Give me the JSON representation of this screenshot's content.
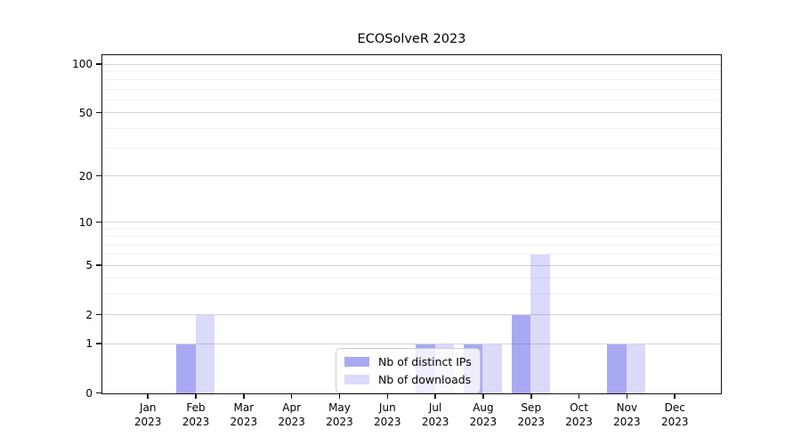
{
  "chart_data": {
    "type": "bar",
    "title": "ECOSolveR 2023",
    "year": "2023",
    "categories": [
      "Jan",
      "Feb",
      "Mar",
      "Apr",
      "May",
      "Jun",
      "Jul",
      "Aug",
      "Sep",
      "Oct",
      "Nov",
      "Dec"
    ],
    "series": [
      {
        "name": "Nb of distinct IPs",
        "color": "#a9a9f3",
        "values": [
          0,
          1,
          0,
          0,
          0,
          0,
          1,
          1,
          2,
          0,
          1,
          0
        ]
      },
      {
        "name": "Nb of downloads",
        "color": "#dadaf9",
        "values": [
          0,
          2,
          0,
          0,
          0,
          0,
          1,
          1,
          6,
          0,
          1,
          0
        ]
      }
    ],
    "yscale": "log1p",
    "ylim": [
      0,
      113
    ],
    "y_major_ticks": [
      0,
      1,
      2,
      5,
      10,
      20,
      50,
      100
    ],
    "y_minor_ticks": [
      3,
      4,
      6,
      7,
      8,
      9,
      30,
      40,
      60,
      70,
      80,
      90
    ],
    "grid": "horizontal",
    "legend_position": "bottom-center",
    "frame_color": "#111111"
  }
}
